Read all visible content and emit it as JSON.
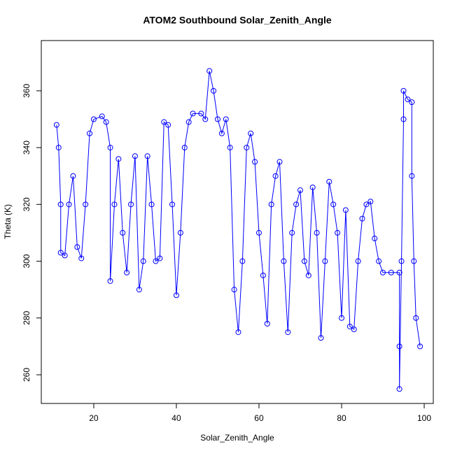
{
  "chart_data": {
    "type": "scatter",
    "title": "ATOM2 Southbound Solar_Zenith_Angle",
    "x_label": "Solar_Zenith_Angle",
    "y_label": "Theta (K)",
    "color": "#0000ff",
    "xlim": [
      7.3,
      102.2
    ],
    "ylim": [
      249.9,
      377.7
    ],
    "xticks": [
      20,
      40,
      60,
      80,
      100
    ],
    "yticks": [
      260,
      280,
      300,
      320,
      340,
      360
    ],
    "x": [
      11,
      11.5,
      12,
      12,
      13,
      14,
      15,
      16,
      17,
      18,
      19,
      20,
      22,
      23,
      24,
      24,
      25,
      26,
      27,
      28,
      29,
      30,
      31,
      32,
      33,
      34,
      35,
      36,
      37,
      38,
      39,
      40,
      41,
      42,
      43,
      44,
      46,
      47,
      48,
      49,
      50,
      51,
      52,
      53,
      54,
      55,
      56,
      57,
      58,
      59,
      60,
      61,
      62,
      63,
      64,
      65,
      66,
      67,
      68,
      69,
      70,
      71,
      72,
      73,
      74,
      75,
      76,
      77,
      78,
      79,
      80,
      81,
      82,
      83,
      84,
      85,
      86,
      87,
      88,
      89,
      90,
      92,
      94,
      94,
      94,
      94.5,
      95,
      95,
      96,
      97,
      97,
      97.5,
      98,
      99
    ],
    "values": [
      348,
      340,
      320,
      303,
      302,
      320,
      330,
      305,
      301,
      320,
      345,
      350,
      351,
      349,
      340,
      293,
      320,
      336,
      310,
      296,
      320,
      337,
      290,
      300,
      337,
      320,
      300,
      301,
      349,
      348,
      320,
      288,
      310,
      340,
      349,
      352,
      352,
      350,
      367,
      360,
      350,
      345,
      350,
      340,
      290,
      275,
      300,
      340,
      345,
      335,
      310,
      295,
      278,
      320,
      330,
      335,
      300,
      275,
      310,
      320,
      325,
      300,
      295,
      326,
      310,
      273,
      300,
      328,
      320,
      310,
      280,
      318,
      277,
      276,
      300,
      315,
      320,
      321,
      308,
      300,
      296,
      296,
      296,
      270,
      255,
      300,
      350,
      360,
      357,
      356,
      330,
      300,
      280,
      270
    ]
  }
}
